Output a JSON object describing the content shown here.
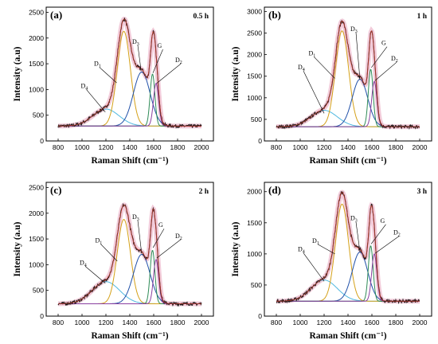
{
  "chart_data": [
    {
      "type": "line",
      "panel_label": "(a)",
      "time_label": "0.5 h",
      "xlabel": "Raman Shift",
      "xlabel_unit": "(cm⁻¹)",
      "ylabel": "Intensity (a.u)",
      "xlim": [
        700,
        2100
      ],
      "ylim": [
        0,
        2600
      ],
      "xticks": [
        "800",
        "1000",
        "1200",
        "1400",
        "1600",
        "1800",
        "2000"
      ],
      "yticks": [
        "0",
        "500",
        "1000",
        "1500",
        "2000",
        "2500"
      ],
      "baseline": 290,
      "peaks": [
        {
          "name": "D4",
          "main": "D",
          "sub": "4",
          "center": 1200,
          "height": 330,
          "width": 110,
          "color": "#4fb8e0",
          "label_x": 1010,
          "label_y": 1030,
          "arrow_x": 1195,
          "arrow_y": 560
        },
        {
          "name": "D1",
          "main": "D",
          "sub": "1",
          "center": 1350,
          "height": 1840,
          "width": 55,
          "color": "#d4a017",
          "label_x": 1120,
          "label_y": 1460,
          "arrow_x": 1290,
          "arrow_y": 1130
        },
        {
          "name": "D3",
          "main": "D",
          "sub": "3",
          "center": 1500,
          "height": 1050,
          "width": 70,
          "color": "#2050a8",
          "label_x": 1440,
          "label_y": 1890,
          "arrow_x": 1495,
          "arrow_y": 1360
        },
        {
          "name": "G",
          "main": "G",
          "sub": "",
          "center": 1590,
          "height": 1010,
          "width": 20,
          "color": "#2e8b57",
          "label_x": 1650,
          "label_y": 1810,
          "arrow_x": 1593,
          "arrow_y": 1320
        },
        {
          "name": "D2",
          "main": "D",
          "sub": "2",
          "center": 1620,
          "height": 830,
          "width": 22,
          "color": "#8a3fa0",
          "label_x": 1800,
          "label_y": 1530,
          "arrow_x": 1625,
          "arrow_y": 1120
        }
      ]
    },
    {
      "type": "line",
      "panel_label": "(b)",
      "time_label": "1 h",
      "xlabel": "Raman Shift",
      "xlabel_unit": "(cm⁻¹)",
      "ylabel": "Intensity (a.u)",
      "xlim": [
        700,
        2100
      ],
      "ylim": [
        0,
        3100
      ],
      "xticks": [
        "800",
        "1000",
        "1200",
        "1400",
        "1600",
        "1800",
        "2000"
      ],
      "yticks": [
        "0",
        "500",
        "1000",
        "1500",
        "2000",
        "2500",
        "3000"
      ],
      "baseline": 330,
      "peaks": [
        {
          "name": "D4",
          "main": "D",
          "sub": "4",
          "center": 1200,
          "height": 380,
          "width": 110,
          "color": "#4fb8e0",
          "label_x": 1000,
          "label_y": 1660,
          "arrow_x": 1200,
          "arrow_y": 640
        },
        {
          "name": "D1",
          "main": "D",
          "sub": "1",
          "center": 1350,
          "height": 2220,
          "width": 55,
          "color": "#d4a017",
          "label_x": 1090,
          "label_y": 1980,
          "arrow_x": 1290,
          "arrow_y": 1450
        },
        {
          "name": "D3",
          "main": "D",
          "sub": "3",
          "center": 1500,
          "height": 1100,
          "width": 65,
          "color": "#2050a8",
          "label_x": 1440,
          "label_y": 2550,
          "arrow_x": 1500,
          "arrow_y": 1420
        },
        {
          "name": "G",
          "main": "G",
          "sub": "",
          "center": 1590,
          "height": 1330,
          "width": 20,
          "color": "#2e8b57",
          "label_x": 1700,
          "label_y": 2220,
          "arrow_x": 1595,
          "arrow_y": 1700
        },
        {
          "name": "D2",
          "main": "D",
          "sub": "2",
          "center": 1620,
          "height": 1050,
          "width": 22,
          "color": "#8a3fa0",
          "label_x": 1780,
          "label_y": 1860,
          "arrow_x": 1627,
          "arrow_y": 1400
        }
      ]
    },
    {
      "type": "line",
      "panel_label": "(c)",
      "time_label": "2 h",
      "xlabel": "Raman Shift",
      "xlabel_unit": "(cm⁻¹)",
      "ylabel": "Intensity (a.u)",
      "xlim": [
        700,
        2100
      ],
      "ylim": [
        0,
        2600
      ],
      "xticks": [
        "800",
        "1000",
        "1200",
        "1400",
        "1600",
        "1800",
        "2000"
      ],
      "yticks": [
        "0",
        "500",
        "1000",
        "1500",
        "2000",
        "2500"
      ],
      "baseline": 240,
      "peaks": [
        {
          "name": "D4",
          "main": "D",
          "sub": "4",
          "center": 1200,
          "height": 430,
          "width": 115,
          "color": "#4fb8e0",
          "label_x": 1000,
          "label_y": 1000,
          "arrow_x": 1195,
          "arrow_y": 640
        },
        {
          "name": "D1",
          "main": "D",
          "sub": "1",
          "center": 1350,
          "height": 1640,
          "width": 55,
          "color": "#d4a017",
          "label_x": 1130,
          "label_y": 1430,
          "arrow_x": 1295,
          "arrow_y": 1070
        },
        {
          "name": "D3",
          "main": "D",
          "sub": "3",
          "center": 1500,
          "height": 960,
          "width": 70,
          "color": "#2050a8",
          "label_x": 1440,
          "label_y": 1890,
          "arrow_x": 1497,
          "arrow_y": 1260
        },
        {
          "name": "G",
          "main": "G",
          "sub": "",
          "center": 1590,
          "height": 1040,
          "width": 20,
          "color": "#2e8b57",
          "label_x": 1660,
          "label_y": 1730,
          "arrow_x": 1594,
          "arrow_y": 1330
        },
        {
          "name": "D2",
          "main": "D",
          "sub": "2",
          "center": 1620,
          "height": 860,
          "width": 22,
          "color": "#8a3fa0",
          "label_x": 1800,
          "label_y": 1520,
          "arrow_x": 1626,
          "arrow_y": 1130
        }
      ]
    },
    {
      "type": "line",
      "panel_label": "(d)",
      "time_label": "3 h",
      "xlabel": "Raman Shift",
      "xlabel_unit": "(cm⁻¹)",
      "ylabel": "Intensity (a.u)",
      "xlim": [
        700,
        2100
      ],
      "ylim": [
        0,
        2150
      ],
      "xticks": [
        "800",
        "1000",
        "1200",
        "1400",
        "1600",
        "1800",
        "2000"
      ],
      "yticks": [
        "0",
        "500",
        "1000",
        "1500",
        "2000"
      ],
      "baseline": 240,
      "peaks": [
        {
          "name": "D4",
          "main": "D",
          "sub": "4",
          "center": 1200,
          "height": 340,
          "width": 110,
          "color": "#4fb8e0",
          "label_x": 1000,
          "label_y": 1040,
          "arrow_x": 1200,
          "arrow_y": 560
        },
        {
          "name": "D1",
          "main": "D",
          "sub": "1",
          "center": 1350,
          "height": 1560,
          "width": 55,
          "color": "#d4a017",
          "label_x": 1120,
          "label_y": 1180,
          "arrow_x": 1290,
          "arrow_y": 1000
        },
        {
          "name": "D3",
          "main": "D",
          "sub": "3",
          "center": 1500,
          "height": 790,
          "width": 65,
          "color": "#2050a8",
          "label_x": 1440,
          "label_y": 1540,
          "arrow_x": 1500,
          "arrow_y": 1030
        },
        {
          "name": "G",
          "main": "G",
          "sub": "",
          "center": 1590,
          "height": 890,
          "width": 20,
          "color": "#2e8b57",
          "label_x": 1690,
          "label_y": 1500,
          "arrow_x": 1594,
          "arrow_y": 1160
        },
        {
          "name": "D2",
          "main": "D",
          "sub": "2",
          "center": 1620,
          "height": 760,
          "width": 22,
          "color": "#8a3fa0",
          "label_x": 1800,
          "label_y": 1310,
          "arrow_x": 1627,
          "arrow_y": 1010
        }
      ]
    }
  ],
  "styles": {
    "raw_color": "#1a1a1a",
    "fit_color": "#e8a0ba",
    "sum_color": "#c0392b"
  }
}
